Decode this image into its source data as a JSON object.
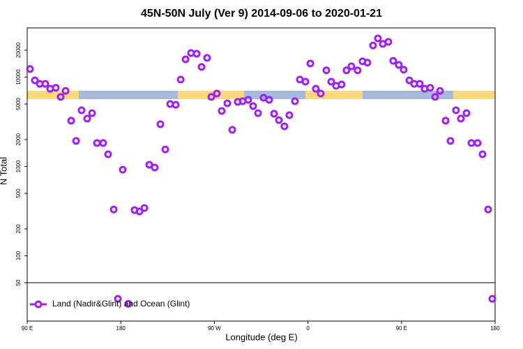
{
  "chart_data": {
    "type": "scatter",
    "title": "45N-50N July (Ver 9)   2014-09-06 to 2020-01-21",
    "x_label": "Longitude (deg E)",
    "y_label": "N Total",
    "log_y": true,
    "legend": "bottom-left",
    "xlim": [
      90,
      540
    ],
    "xticks": [
      {
        "value": 90,
        "label": "90 E"
      },
      180,
      {
        "value": 270,
        "label": "90 W"
      },
      {
        "value": 360,
        "label": "0"
      },
      {
        "value": 450,
        "label": "90 E"
      },
      {
        "value": 540,
        "label": "180"
      }
    ],
    "ylim": [
      18.6,
      35500
    ],
    "yticks": [
      50,
      100,
      200,
      500,
      1000,
      2000,
      5000,
      10000,
      20000
    ],
    "series": [
      {
        "name": "Land (Nadir&Glint) and Ocean (Glint)",
        "color": "#a020f0",
        "x": [
          92.7,
          97.4,
          102.1,
          107.4,
          112.1,
          117.5,
          122.2,
          126.9,
          132.3,
          137.0,
          142.3,
          147.7,
          152.4,
          157.1,
          163.1,
          167.8,
          173.2,
          177.2,
          181.9,
          187.3,
          193.3,
          198.0,
          202.7,
          207.4,
          212.7,
          218.1,
          222.8,
          227.5,
          232.9,
          237.6,
          242.3,
          247.6,
          253.0,
          257.7,
          263.0,
          267.1,
          272.4,
          277.1,
          282.5,
          287.2,
          292.5,
          297.2,
          302.6,
          307.3,
          312.0,
          317.3,
          322.7,
          327.4,
          332.1,
          337.4,
          342.1,
          347.5,
          352.2,
          357.6,
          362.3,
          367.6,
          372.3,
          377.7,
          382.4,
          387.1,
          392.4,
          397.1,
          401.8,
          407.8,
          412.5,
          417.2,
          422.6,
          427.3,
          432.0,
          437.3,
          442.0,
          447.4,
          452.1,
          457.5,
          462.2,
          467.5,
          472.2,
          477.6,
          482.3,
          487.0,
          492.4,
          497.1,
          502.4,
          507.1,
          512.5,
          517.2,
          523.2,
          527.9,
          533.3,
          537.3
        ],
        "values": [
          12300,
          9200,
          8400,
          8400,
          7400,
          7600,
          6000,
          7000,
          3250,
          1930,
          4250,
          3430,
          3950,
          1830,
          1830,
          1370,
          330,
          33,
          920,
          29,
          325,
          313,
          343,
          1045,
          973,
          2970,
          1550,
          5000,
          4900,
          9380,
          15800,
          18600,
          18260,
          13000,
          16400,
          6000,
          6550,
          4180,
          5090,
          2570,
          5280,
          5370,
          5570,
          4740,
          3950,
          5880,
          5570,
          3890,
          3300,
          2810,
          3750,
          5370,
          9380,
          8890,
          14200,
          7400,
          6550,
          11900,
          8890,
          7980,
          8270,
          11900,
          13200,
          11900,
          15000,
          14500,
          22600,
          27100,
          23500,
          24800,
          15200,
          13700,
          12100,
          9200,
          8400,
          8400,
          7400,
          7600,
          6000,
          7000,
          3250,
          1930,
          4250,
          3430,
          3950,
          1830,
          1830,
          1370,
          330,
          33
        ]
      }
    ]
  }
}
